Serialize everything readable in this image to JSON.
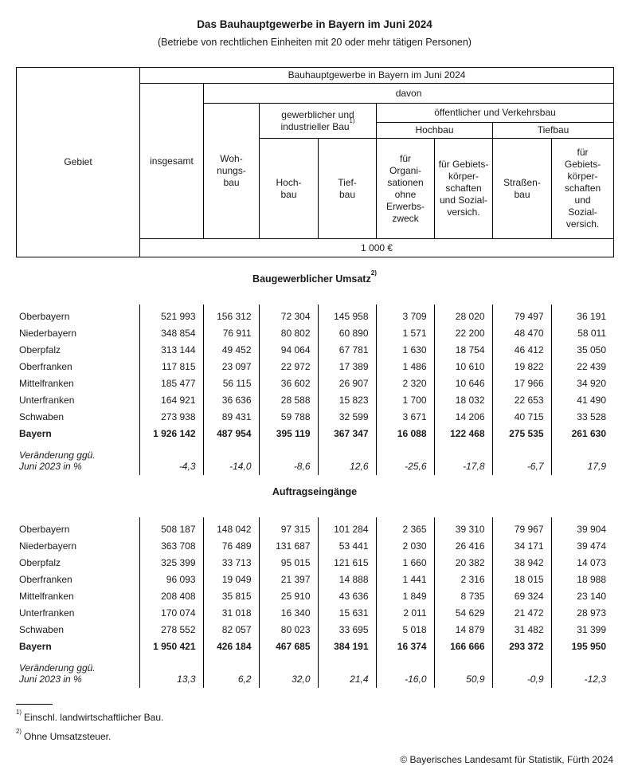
{
  "title": "Das Bauhauptgewerbe in Bayern im Juni 2024",
  "subtitle": "(Betriebe von rechtlichen Einheiten mit 20 oder mehr tätigen Personen)",
  "header": {
    "gebiet": "Gebiet",
    "top": "Bauhauptgewerbe in Bayern im Juni 2024",
    "davon": "davon",
    "insgesamt": "insgesamt",
    "wohnungsbau": "Woh-\nnungs-\nbau",
    "gewerblich": "gewerblicher und\nindustrieller Bau",
    "gewerblich_fn": "1)",
    "oeffentlich": "öffentlicher und Verkehrsbau",
    "hochbau_group": "Hochbau",
    "tiefbau_group": "Tiefbau",
    "hochbau": "Hoch-\nbau",
    "tiefbau": "Tief-\nbau",
    "org": "für\nOrgani-\nsationen\nohne\nErwerbs-\nzweck",
    "gebiets_h": "für Gebiets-\nkörper-\nschaften\nund Sozial-\nversich.",
    "strassenbau": "Straßen-\nbau",
    "gebiets_t": "für\nGebiets-\nkörper-\nschaften\nund\nSozial-\nversich.",
    "unit": "1 000 €"
  },
  "sections": [
    {
      "title": "Baugewerblicher Umsatz",
      "title_footnote": "2)",
      "rows": [
        {
          "label": "Oberbayern",
          "values": [
            "521 993",
            "156 312",
            "72 304",
            "145 958",
            "3 709",
            "28 020",
            "79 497",
            "36 191"
          ]
        },
        {
          "label": "Niederbayern",
          "values": [
            "348 854",
            "76 911",
            "80 802",
            "60 890",
            "1 571",
            "22 200",
            "48 470",
            "58 011"
          ]
        },
        {
          "label": "Oberpfalz",
          "values": [
            "313 144",
            "49 452",
            "94 064",
            "67 781",
            "1 630",
            "18 754",
            "46 412",
            "35 050"
          ]
        },
        {
          "label": "Oberfranken",
          "values": [
            "117 815",
            "23 097",
            "22 972",
            "17 389",
            "1 486",
            "10 610",
            "19 822",
            "22 439"
          ]
        },
        {
          "label": "Mittelfranken",
          "values": [
            "185 477",
            "56 115",
            "36 602",
            "26 907",
            "2 320",
            "10 646",
            "17 966",
            "34 920"
          ]
        },
        {
          "label": "Unterfranken",
          "values": [
            "164 921",
            "36 636",
            "28 588",
            "15 823",
            "1 700",
            "18 032",
            "22 653",
            "41 490"
          ]
        },
        {
          "label": "Schwaben",
          "values": [
            "273 938",
            "89 431",
            "59 788",
            "32 599",
            "3 671",
            "14 206",
            "40 715",
            "33 528"
          ]
        },
        {
          "label": "Bayern",
          "bold": true,
          "values": [
            "1 926 142",
            "487 954",
            "395 119",
            "367 347",
            "16 088",
            "122 468",
            "275 535",
            "261 630"
          ]
        },
        {
          "label": "Veränderung ggü.\nJuni 2023 in %",
          "italic": true,
          "values": [
            "-4,3",
            "-14,0",
            "-8,6",
            "12,6",
            "-25,6",
            "-17,8",
            "-6,7",
            "17,9"
          ]
        }
      ]
    },
    {
      "title": "Auftragseingänge",
      "rows": [
        {
          "label": "Oberbayern",
          "values": [
            "508 187",
            "148 042",
            "97 315",
            "101 284",
            "2 365",
            "39 310",
            "79 967",
            "39 904"
          ]
        },
        {
          "label": "Niederbayern",
          "values": [
            "363 708",
            "76 489",
            "131 687",
            "53 441",
            "2 030",
            "26 416",
            "34 171",
            "39 474"
          ]
        },
        {
          "label": "Oberpfalz",
          "values": [
            "325 399",
            "33 713",
            "95 015",
            "121 615",
            "1 660",
            "20 382",
            "38 942",
            "14 073"
          ]
        },
        {
          "label": "Oberfranken",
          "values": [
            "96 093",
            "19 049",
            "21 397",
            "14 888",
            "1 441",
            "2 316",
            "18 015",
            "18 988"
          ]
        },
        {
          "label": "Mittelfranken",
          "values": [
            "208 408",
            "35 815",
            "25 910",
            "43 636",
            "1 849",
            "8 735",
            "69 324",
            "23 140"
          ]
        },
        {
          "label": "Unterfranken",
          "values": [
            "170 074",
            "31 018",
            "16 340",
            "15 631",
            "2 011",
            "54 629",
            "21 472",
            "28 973"
          ]
        },
        {
          "label": "Schwaben",
          "values": [
            "278 552",
            "82 057",
            "80 023",
            "33 695",
            "5 018",
            "14 879",
            "31 482",
            "31 399"
          ]
        },
        {
          "label": "Bayern",
          "bold": true,
          "values": [
            "1 950 421",
            "426 184",
            "467 685",
            "384 191",
            "16 374",
            "166 666",
            "293 372",
            "195 950"
          ]
        },
        {
          "label": "Veränderung ggü.\nJuni 2023 in %",
          "italic": true,
          "values": [
            "13,3",
            "6,2",
            "32,0",
            "21,4",
            "-16,0",
            "50,9",
            "-0,9",
            "-12,3"
          ]
        }
      ]
    }
  ],
  "footnotes": [
    {
      "marker": "1)",
      "text": "Einschl. landwirtschaftlicher Bau."
    },
    {
      "marker": "2)",
      "text": "Ohne Umsatzsteuer."
    }
  ],
  "copyright": "© Bayerisches Landesamt für Statistik, Fürth 2024"
}
